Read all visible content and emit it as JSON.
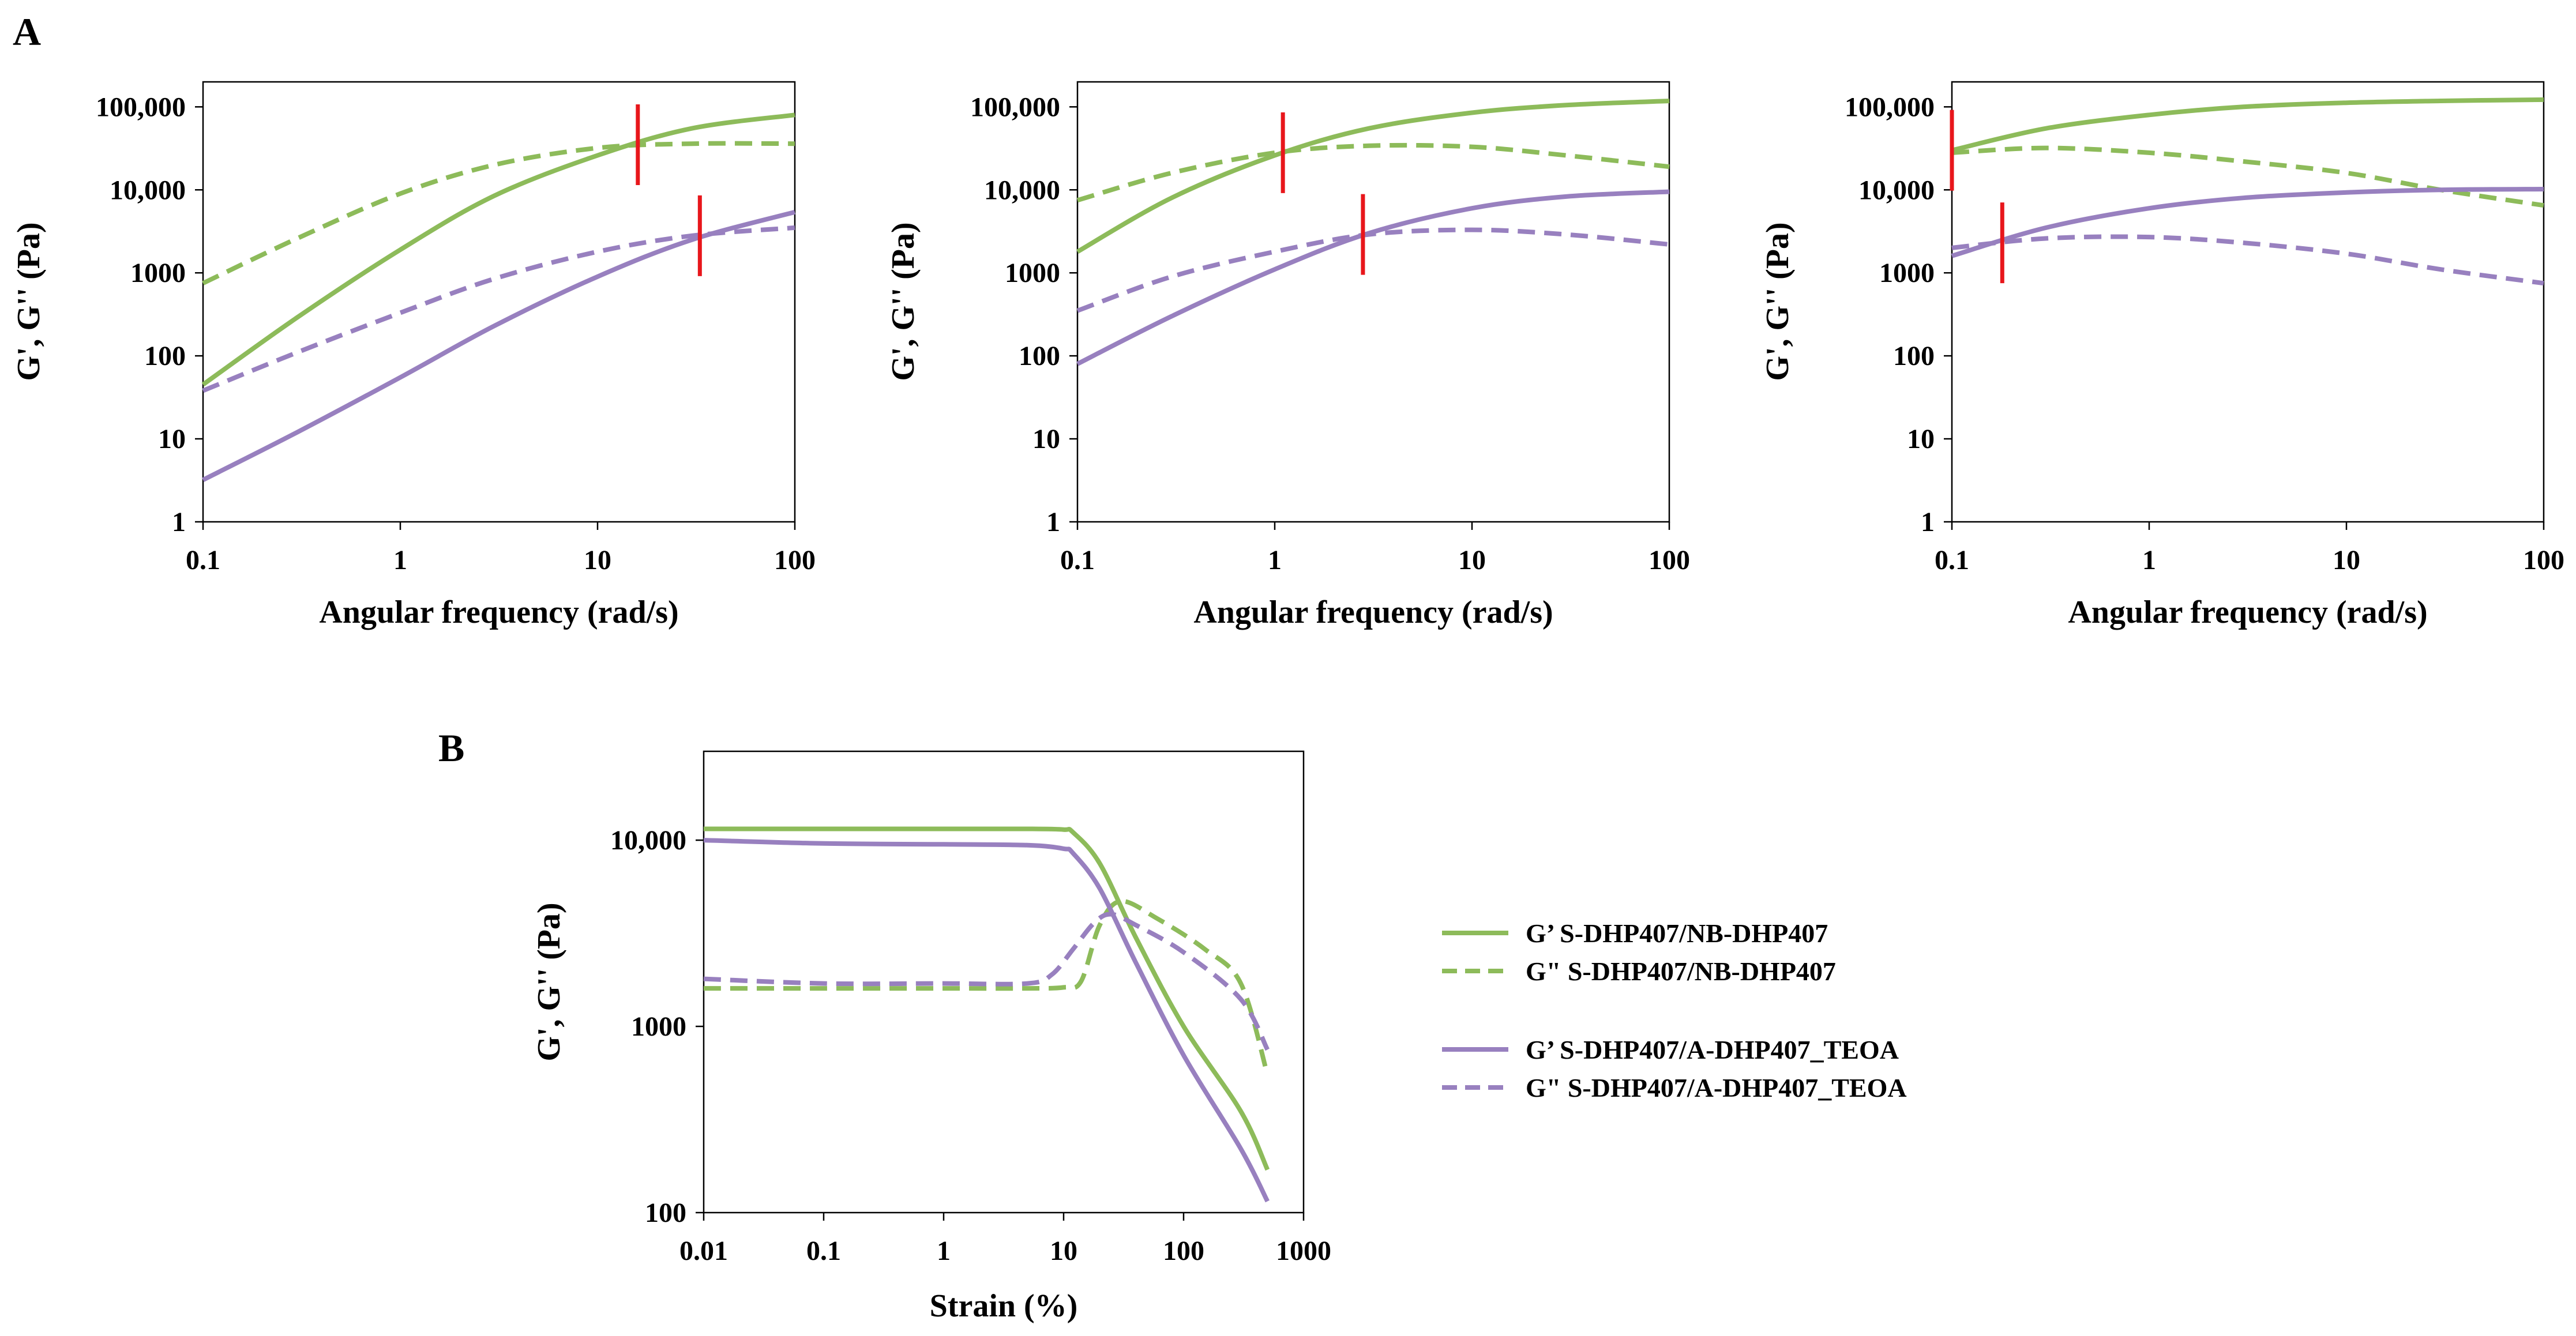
{
  "colors": {
    "green": "#8DBB5A",
    "purple": "#9880BF",
    "marker": "#E8161B",
    "frame": "#000000"
  },
  "panels": {
    "a_label": "A",
    "b_label": "B"
  },
  "chart_data": [
    {
      "id": "A1",
      "type": "line",
      "title": "",
      "xlabel": "Angular frequency (rad/s)",
      "ylabel": "G', G'' (Pa)",
      "xscale": "log",
      "yscale": "log",
      "xlim": [
        0.1,
        100
      ],
      "ylim": [
        1,
        200000
      ],
      "xticks": [
        0.1,
        1,
        10,
        100
      ],
      "xtick_labels": [
        "0.1",
        "1",
        "10",
        "100"
      ],
      "yticks": [
        1,
        10,
        100,
        1000,
        10000,
        100000
      ],
      "ytick_labels": [
        "1",
        "10",
        "100",
        "1000",
        "10,000",
        "100,000"
      ],
      "series": [
        {
          "name": "G' S-DHP407/NB-DHP407",
          "color": "green",
          "style": "solid",
          "x": [
            0.1,
            0.3,
            1,
            3,
            10,
            30,
            100
          ],
          "y": [
            45,
            290,
            1900,
            8500,
            26000,
            55000,
            80000
          ]
        },
        {
          "name": "G'' S-DHP407/NB-DHP407",
          "color": "green",
          "style": "dashed",
          "x": [
            0.1,
            0.3,
            1,
            3,
            10,
            30,
            100
          ],
          "y": [
            750,
            2600,
            9000,
            20000,
            32000,
            36000,
            36000
          ]
        },
        {
          "name": "G' S-DHP407/A-DHP407_TEOA",
          "color": "purple",
          "style": "solid",
          "x": [
            0.1,
            0.3,
            1,
            3,
            10,
            30,
            100
          ],
          "y": [
            3.2,
            12,
            55,
            230,
            900,
            2500,
            5400
          ]
        },
        {
          "name": "G'' S-DHP407/A-DHP407_TEOA",
          "color": "purple",
          "style": "dashed",
          "x": [
            0.1,
            0.3,
            1,
            3,
            10,
            30,
            100
          ],
          "y": [
            38,
            110,
            330,
            850,
            1800,
            2800,
            3500
          ]
        }
      ],
      "crossovers": [
        {
          "x": 16,
          "y": 35000
        },
        {
          "x": 33,
          "y": 2800
        }
      ]
    },
    {
      "id": "A2",
      "type": "line",
      "title": "",
      "xlabel": "Angular frequency (rad/s)",
      "ylabel": "G', G'' (Pa)",
      "xscale": "log",
      "yscale": "log",
      "xlim": [
        0.1,
        100
      ],
      "ylim": [
        1,
        200000
      ],
      "xticks": [
        0.1,
        1,
        10,
        100
      ],
      "xtick_labels": [
        "0.1",
        "1",
        "10",
        "100"
      ],
      "yticks": [
        1,
        10,
        100,
        1000,
        10000,
        100000
      ],
      "ytick_labels": [
        "1",
        "10",
        "100",
        "1000",
        "10,000",
        "100,000"
      ],
      "series": [
        {
          "name": "G' S-DHP407/NB-DHP407",
          "color": "green",
          "style": "solid",
          "x": [
            0.1,
            0.3,
            1,
            3,
            10,
            30,
            100
          ],
          "y": [
            1800,
            8000,
            26000,
            55000,
            85000,
            105000,
            118000
          ]
        },
        {
          "name": "G'' S-DHP407/NB-DHP407",
          "color": "green",
          "style": "dashed",
          "x": [
            0.1,
            0.3,
            1,
            3,
            10,
            30,
            100
          ],
          "y": [
            7500,
            16000,
            28000,
            34000,
            33000,
            26000,
            19000
          ]
        },
        {
          "name": "G' S-DHP407/A-DHP407_TEOA",
          "color": "purple",
          "style": "solid",
          "x": [
            0.1,
            0.3,
            1,
            3,
            10,
            30,
            100
          ],
          "y": [
            80,
            300,
            1100,
            3000,
            6000,
            8300,
            9500
          ]
        },
        {
          "name": "G'' S-DHP407/A-DHP407_TEOA",
          "color": "purple",
          "style": "dashed",
          "x": [
            0.1,
            0.3,
            1,
            3,
            10,
            30,
            100
          ],
          "y": [
            350,
            900,
            1800,
            2900,
            3300,
            2900,
            2200
          ]
        }
      ],
      "crossovers": [
        {
          "x": 1.1,
          "y": 28000
        },
        {
          "x": 2.8,
          "y": 2900
        }
      ]
    },
    {
      "id": "A3",
      "type": "line",
      "title": "",
      "xlabel": "Angular frequency (rad/s)",
      "ylabel": "G', G'' (Pa)",
      "xscale": "log",
      "yscale": "log",
      "xlim": [
        0.1,
        100
      ],
      "ylim": [
        1,
        200000
      ],
      "xticks": [
        0.1,
        1,
        10,
        100
      ],
      "xtick_labels": [
        "0.1",
        "1",
        "10",
        "100"
      ],
      "yticks": [
        1,
        10,
        100,
        1000,
        10000,
        100000
      ],
      "ytick_labels": [
        "1",
        "10",
        "100",
        "1000",
        "10,000",
        "100,000"
      ],
      "series": [
        {
          "name": "G' S-DHP407/NB-DHP407",
          "color": "green",
          "style": "solid",
          "x": [
            0.1,
            0.3,
            1,
            3,
            10,
            30,
            100
          ],
          "y": [
            30000,
            55000,
            80000,
            100000,
            112000,
            118000,
            122000
          ]
        },
        {
          "name": "G'' S-DHP407/NB-DHP407",
          "color": "green",
          "style": "dashed",
          "x": [
            0.1,
            0.3,
            1,
            3,
            10,
            30,
            100
          ],
          "y": [
            28000,
            32000,
            28000,
            22000,
            16000,
            10000,
            6500
          ]
        },
        {
          "name": "G' S-DHP407/A-DHP407_TEOA",
          "color": "purple",
          "style": "solid",
          "x": [
            0.1,
            0.3,
            1,
            3,
            10,
            30,
            100
          ],
          "y": [
            1600,
            3500,
            6000,
            8000,
            9300,
            10000,
            10200
          ]
        },
        {
          "name": "G'' S-DHP407/A-DHP407_TEOA",
          "color": "purple",
          "style": "dashed",
          "x": [
            0.1,
            0.3,
            1,
            3,
            10,
            30,
            100
          ],
          "y": [
            2000,
            2600,
            2700,
            2300,
            1700,
            1100,
            750
          ]
        }
      ],
      "crossovers": [
        {
          "x": 0.1,
          "y": 30000
        },
        {
          "x": 0.18,
          "y": 2300
        }
      ]
    },
    {
      "id": "B",
      "type": "line",
      "title": "",
      "xlabel": "Strain (%)",
      "ylabel": "G', G'' (Pa)",
      "xscale": "log",
      "yscale": "log",
      "xlim": [
        0.01,
        1000
      ],
      "ylim": [
        100,
        30000
      ],
      "xticks": [
        0.01,
        0.1,
        1,
        10,
        100,
        1000
      ],
      "xtick_labels": [
        "0.01",
        "0.1",
        "1",
        "10",
        "100",
        "1000"
      ],
      "yticks": [
        100,
        1000,
        10000
      ],
      "ytick_labels": [
        "100",
        "1000",
        "10,000"
      ],
      "series": [
        {
          "name": "G' S-DHP407/NB-DHP407",
          "color": "green",
          "style": "solid",
          "x": [
            0.01,
            0.1,
            1,
            5,
            10,
            12,
            20,
            40,
            100,
            300,
            500
          ],
          "y": [
            11500,
            11500,
            11500,
            11500,
            11400,
            11000,
            7500,
            3000,
            1000,
            350,
            170
          ]
        },
        {
          "name": "G'' S-DHP407/NB-DHP407",
          "color": "green",
          "style": "dashed",
          "x": [
            0.01,
            0.1,
            1,
            5,
            10,
            14,
            20,
            30,
            60,
            150,
            300,
            500
          ],
          "y": [
            1600,
            1600,
            1600,
            1600,
            1620,
            1750,
            3500,
            4700,
            3800,
            2600,
            1700,
            550
          ]
        },
        {
          "name": "G' S-DHP407/A-DHP407_TEOA",
          "color": "purple",
          "style": "solid",
          "x": [
            0.01,
            0.1,
            1,
            5,
            10,
            12,
            20,
            40,
            100,
            300,
            500
          ],
          "y": [
            10000,
            9600,
            9500,
            9400,
            9000,
            8500,
            5500,
            2200,
            700,
            220,
            115
          ]
        },
        {
          "name": "G'' S-DHP407/A-DHP407_TEOA",
          "color": "purple",
          "style": "dashed",
          "x": [
            0.01,
            0.1,
            1,
            5,
            8,
            12,
            18,
            25,
            40,
            100,
            300,
            500
          ],
          "y": [
            1800,
            1700,
            1700,
            1700,
            1900,
            2600,
            3600,
            4000,
            3500,
            2500,
            1400,
            750
          ]
        }
      ],
      "legend": {
        "position": "right",
        "entries": [
          {
            "label": "G’ S-DHP407/NB-DHP407",
            "color": "green",
            "style": "solid"
          },
          {
            "label": "G\" S-DHP407/NB-DHP407",
            "color": "green",
            "style": "dashed"
          },
          {
            "label": "G’ S-DHP407/A-DHP407_TEOA",
            "color": "purple",
            "style": "solid"
          },
          {
            "label": "G\" S-DHP407/A-DHP407_TEOA",
            "color": "purple",
            "style": "dashed"
          }
        ]
      }
    }
  ]
}
